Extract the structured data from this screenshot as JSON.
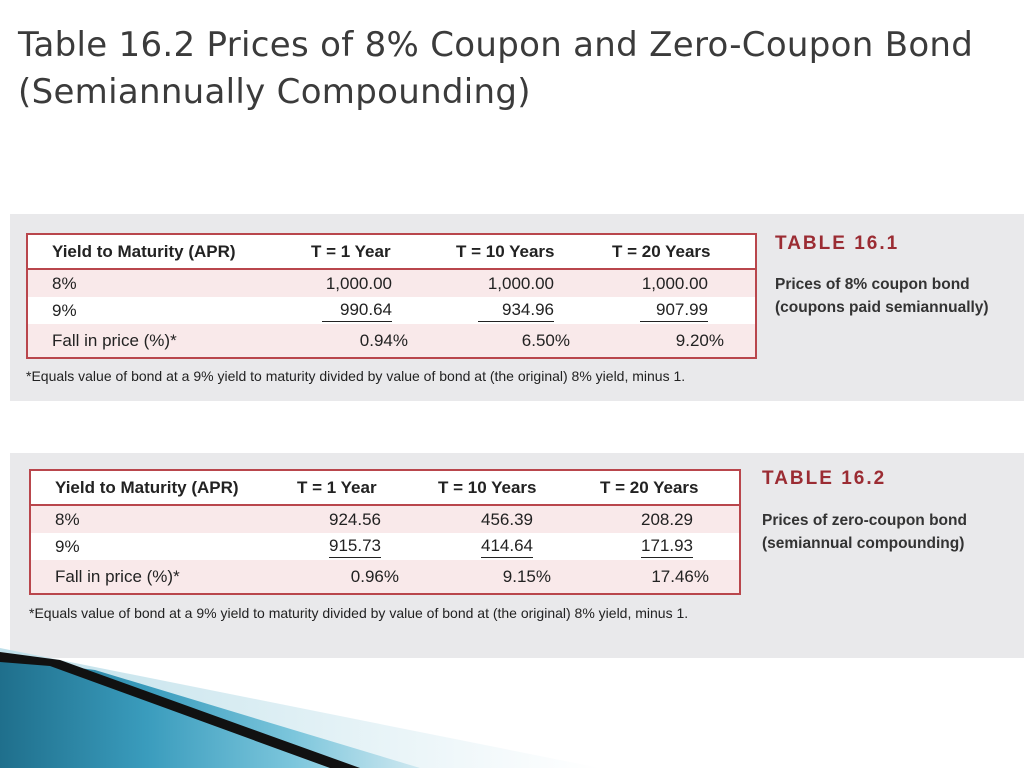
{
  "slide": {
    "title": "Table 16.2 Prices of 8% Coupon and Zero-Coupon Bond  (Semiannually Compounding)"
  },
  "table1": {
    "tag": "TABLE  16.1",
    "caption": "Prices of 8% coupon bond (coupons paid semiannually)",
    "headers": [
      "Yield to Maturity (APR)",
      "T = 1 Year",
      "T = 10 Years",
      "T = 20 Years"
    ],
    "rows": [
      [
        "8%",
        "1,000.00",
        "1,000.00",
        "1,000.00"
      ],
      [
        "9%",
        "990.64",
        "934.96",
        "907.99"
      ],
      [
        "Fall in price (%)*",
        "0.94%",
        "6.50%",
        "9.20%"
      ]
    ],
    "note": "*Equals value of bond at a 9% yield to maturity divided by value of bond at (the original) 8% yield, minus 1."
  },
  "table2": {
    "tag": "TABLE  16.2",
    "caption": "Prices of zero-coupon bond (semiannual compounding)",
    "headers": [
      "Yield to Maturity (APR)",
      "T = 1 Year",
      "T = 10 Years",
      "T = 20 Years"
    ],
    "rows": [
      [
        "8%",
        "924.56",
        "456.39",
        "208.29"
      ],
      [
        "9%",
        "915.73",
        "414.64",
        "171.93"
      ],
      [
        "Fall in price (%)*",
        "0.96%",
        "9.15%",
        "17.46%"
      ]
    ],
    "note": "*Equals value of bond at a 9% yield to maturity divided by value of bond at (the original) 8% yield, minus 1."
  },
  "colors": {
    "accent": "#b9464c",
    "tag": "#9b2c33",
    "stripe": "#f9e9ea",
    "panel": "#e9e9eb"
  }
}
